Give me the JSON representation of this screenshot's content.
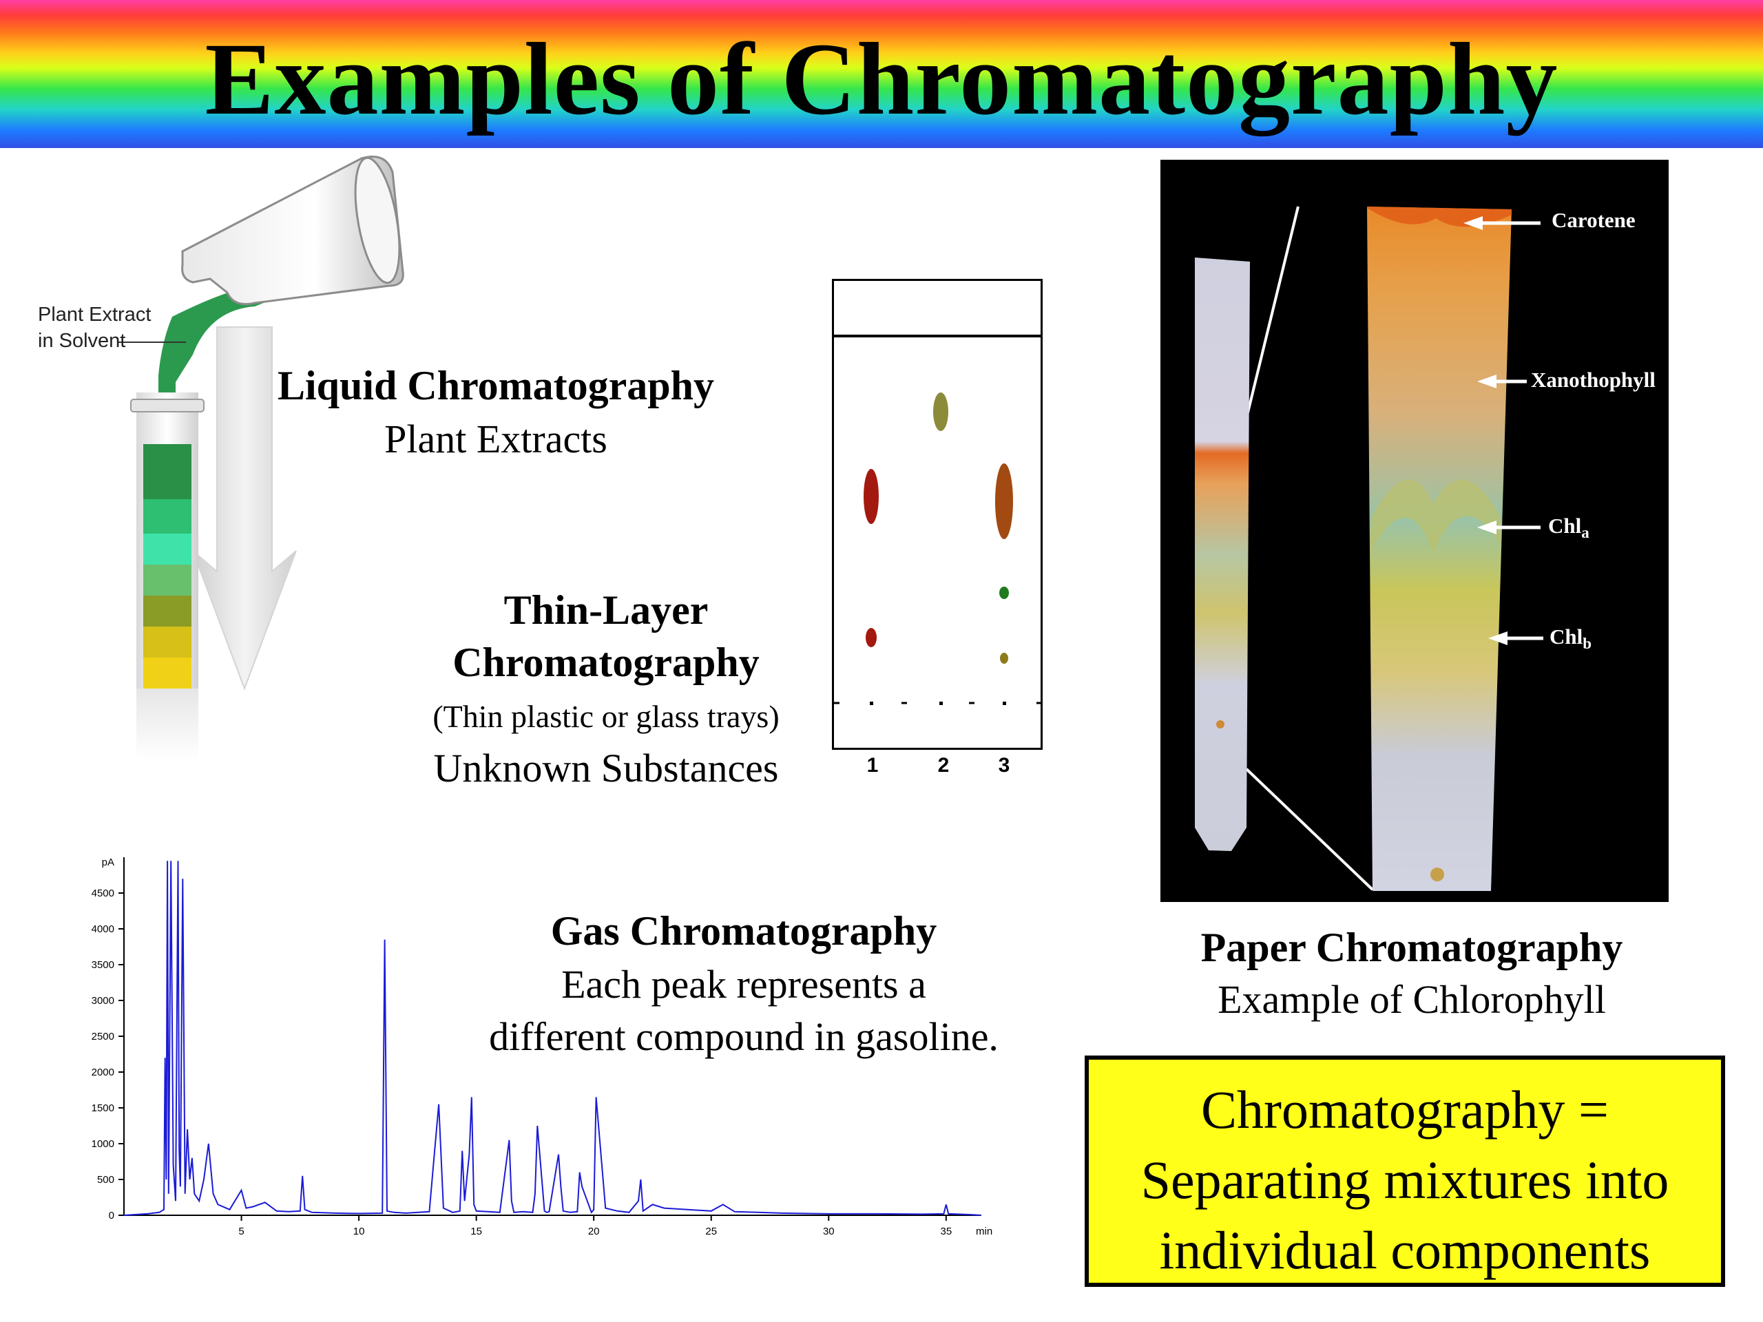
{
  "title": "Examples of Chromatography",
  "liquid": {
    "heading": "Liquid Chromatography",
    "caption": "Plant Extracts",
    "illustration_label_line1": "Plant Extract",
    "illustration_label_line2": "in Solvent"
  },
  "tlc": {
    "heading_line1": "Thin-Layer",
    "heading_line2": "Chromatography",
    "note": "(Thin plastic or glass trays)",
    "caption": "Unknown Substances",
    "lanes": [
      "1",
      "2",
      "3"
    ]
  },
  "gas": {
    "heading": "Gas Chromatography",
    "caption_line1": "Each peak represents a",
    "caption_line2": "different compound in gasoline."
  },
  "paper": {
    "heading": "Paper Chromatography",
    "caption": "Example of Chlorophyll",
    "bands": [
      {
        "name": "Carotene",
        "sub": ""
      },
      {
        "name": "Xanothophyll",
        "sub": ""
      },
      {
        "name": "Chl",
        "sub": "a"
      },
      {
        "name": "Chl",
        "sub": "b"
      }
    ]
  },
  "summary": {
    "line1": "Chromatography =",
    "line2": "Separating mixtures into",
    "line3": "individual components"
  },
  "chart_data": {
    "type": "line",
    "xlabel": "min",
    "ylabel": "pA",
    "xlim": [
      0,
      36.5
    ],
    "ylim": [
      0,
      5000
    ],
    "x_ticks": [
      "5",
      "10",
      "15",
      "20",
      "25",
      "30",
      "35"
    ],
    "y_ticks": [
      "0",
      "500",
      "1000",
      "1500",
      "2000",
      "2500",
      "3000",
      "3500",
      "4000",
      "4500"
    ],
    "series": [
      {
        "x": [
          0,
          1,
          1.5,
          1.7,
          1.75,
          1.8,
          1.85,
          1.9,
          2.0,
          2.1,
          2.2,
          2.3,
          2.35,
          2.4,
          2.5,
          2.6,
          2.7,
          2.8,
          2.9,
          3.0,
          3.2,
          3.4,
          3.6,
          3.8,
          4.0,
          4.5,
          5.0,
          5.2,
          5.5,
          6.0,
          6.5,
          7.0,
          7.5,
          7.6,
          7.7,
          8.0,
          9.0,
          10.0,
          11.0,
          11.1,
          11.2,
          11.5,
          12.0,
          13.0,
          13.2,
          13.4,
          13.6,
          14.0,
          14.3,
          14.4,
          14.5,
          14.7,
          14.8,
          14.9,
          15.0,
          15.5,
          16.0,
          16.4,
          16.5,
          16.6,
          17.0,
          17.4,
          17.5,
          17.6,
          17.9,
          18.0,
          18.1,
          18.5,
          18.6,
          18.7,
          19.0,
          19.3,
          19.4,
          19.5,
          19.9,
          20.0,
          20.1,
          20.5,
          21.0,
          21.5,
          21.9,
          22.0,
          22.1,
          22.5,
          23.0,
          24.0,
          25.0,
          25.5,
          26.0,
          27.0,
          28.0,
          30.0,
          32.0,
          34.0,
          34.9,
          35.0,
          35.1,
          36.0,
          36.5
        ],
        "y": [
          0,
          20,
          40,
          80,
          2200,
          500,
          4950,
          300,
          4950,
          700,
          200,
          4950,
          900,
          400,
          4700,
          300,
          1200,
          500,
          800,
          300,
          200,
          500,
          1000,
          300,
          150,
          80,
          350,
          100,
          120,
          180,
          60,
          50,
          60,
          550,
          80,
          40,
          30,
          25,
          30,
          3850,
          60,
          40,
          30,
          50,
          800,
          1550,
          100,
          40,
          60,
          900,
          200,
          850,
          1650,
          150,
          60,
          50,
          40,
          1050,
          200,
          40,
          50,
          40,
          300,
          1250,
          60,
          40,
          50,
          850,
          400,
          60,
          40,
          50,
          600,
          400,
          40,
          80,
          1650,
          100,
          60,
          40,
          200,
          500,
          60,
          150,
          100,
          80,
          60,
          150,
          50,
          40,
          30,
          20,
          20,
          15,
          20,
          150,
          20,
          10,
          0
        ]
      }
    ]
  }
}
